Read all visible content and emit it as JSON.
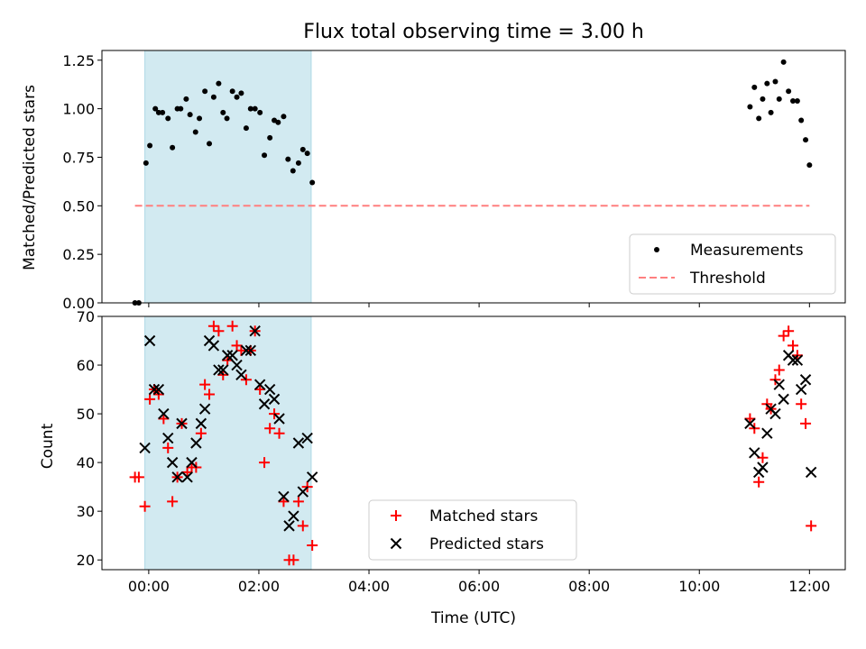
{
  "title": "Flux total observing time = 3.00 h",
  "chart_data": [
    {
      "type": "scatter",
      "ylabel": "Matched/Predicted stars",
      "ylim": [
        0,
        1.3
      ],
      "yticks": [
        0,
        0.25,
        0.5,
        0.75,
        1.0,
        1.25
      ],
      "yticklabels": [
        "0.00",
        "0.25",
        "0.50",
        "0.75",
        "1.00",
        "1.25"
      ],
      "xlim_hours": [
        -0.85,
        12.65
      ],
      "highlight_span_hours": [
        -0.07,
        2.95
      ],
      "highlight_color": "#add8e6",
      "legend_position": "lower-right",
      "series": [
        {
          "name": "Measurements",
          "marker": "dot",
          "color": "#000000",
          "points": [
            [
              -0.25,
              0.0
            ],
            [
              -0.18,
              0.0
            ],
            [
              -0.05,
              0.72
            ],
            [
              0.02,
              0.81
            ],
            [
              0.12,
              1.0
            ],
            [
              0.18,
              0.98
            ],
            [
              0.25,
              0.98
            ],
            [
              0.35,
              0.95
            ],
            [
              0.43,
              0.8
            ],
            [
              0.52,
              1.0
            ],
            [
              0.58,
              1.0
            ],
            [
              0.68,
              1.05
            ],
            [
              0.75,
              0.97
            ],
            [
              0.85,
              0.88
            ],
            [
              0.92,
              0.95
            ],
            [
              1.02,
              1.09
            ],
            [
              1.1,
              0.82
            ],
            [
              1.18,
              1.06
            ],
            [
              1.27,
              1.13
            ],
            [
              1.35,
              0.98
            ],
            [
              1.42,
              0.95
            ],
            [
              1.52,
              1.09
            ],
            [
              1.6,
              1.06
            ],
            [
              1.68,
              1.08
            ],
            [
              1.77,
              0.9
            ],
            [
              1.85,
              1.0
            ],
            [
              1.93,
              1.0
            ],
            [
              2.02,
              0.98
            ],
            [
              2.1,
              0.76
            ],
            [
              2.2,
              0.85
            ],
            [
              2.28,
              0.94
            ],
            [
              2.35,
              0.93
            ],
            [
              2.45,
              0.96
            ],
            [
              2.53,
              0.74
            ],
            [
              2.62,
              0.68
            ],
            [
              2.72,
              0.72
            ],
            [
              2.8,
              0.79
            ],
            [
              2.88,
              0.77
            ],
            [
              2.97,
              0.62
            ],
            [
              10.92,
              1.01
            ],
            [
              11.0,
              1.11
            ],
            [
              11.08,
              0.95
            ],
            [
              11.15,
              1.05
            ],
            [
              11.23,
              1.13
            ],
            [
              11.3,
              0.98
            ],
            [
              11.38,
              1.14
            ],
            [
              11.45,
              1.05
            ],
            [
              11.53,
              1.24
            ],
            [
              11.62,
              1.09
            ],
            [
              11.7,
              1.04
            ],
            [
              11.78,
              1.04
            ],
            [
              11.85,
              0.94
            ],
            [
              11.93,
              0.84
            ],
            [
              12.0,
              0.71
            ]
          ]
        },
        {
          "name": "Threshold",
          "marker": "dashed-line",
          "color": "#ff7f7f",
          "x": [
            -0.25,
            12.0
          ],
          "y": [
            0.5,
            0.5
          ]
        }
      ]
    },
    {
      "type": "scatter",
      "xlabel": "Time (UTC)",
      "ylabel": "Count",
      "ylim": [
        18,
        70
      ],
      "yticks": [
        20,
        30,
        40,
        50,
        60,
        70
      ],
      "yticklabels": [
        "20",
        "30",
        "40",
        "50",
        "60",
        "70"
      ],
      "xlim_hours": [
        -0.85,
        12.65
      ],
      "xticks_hours": [
        0,
        2,
        4,
        6,
        8,
        10,
        12
      ],
      "xticklabels": [
        "00:00",
        "02:00",
        "04:00",
        "06:00",
        "08:00",
        "10:00",
        "12:00"
      ],
      "highlight_span_hours": [
        -0.07,
        2.95
      ],
      "highlight_color": "#add8e6",
      "legend_position": "lower-center",
      "series": [
        {
          "name": "Matched stars",
          "marker": "plus",
          "color": "#ff0000",
          "points": [
            [
              -0.25,
              37
            ],
            [
              -0.18,
              37
            ],
            [
              -0.07,
              31
            ],
            [
              0.02,
              53
            ],
            [
              0.1,
              55
            ],
            [
              0.18,
              54
            ],
            [
              0.27,
              49
            ],
            [
              0.35,
              43
            ],
            [
              0.43,
              32
            ],
            [
              0.52,
              37
            ],
            [
              0.6,
              48
            ],
            [
              0.7,
              38
            ],
            [
              0.78,
              39
            ],
            [
              0.86,
              39
            ],
            [
              0.95,
              46
            ],
            [
              1.02,
              56
            ],
            [
              1.1,
              54
            ],
            [
              1.18,
              68
            ],
            [
              1.27,
              67
            ],
            [
              1.35,
              58
            ],
            [
              1.43,
              61
            ],
            [
              1.52,
              68
            ],
            [
              1.6,
              64
            ],
            [
              1.68,
              63
            ],
            [
              1.77,
              57
            ],
            [
              1.85,
              63
            ],
            [
              1.93,
              67
            ],
            [
              2.02,
              55
            ],
            [
              2.1,
              40
            ],
            [
              2.2,
              47
            ],
            [
              2.28,
              50
            ],
            [
              2.37,
              46
            ],
            [
              2.45,
              32
            ],
            [
              2.55,
              20
            ],
            [
              2.63,
              20
            ],
            [
              2.72,
              32
            ],
            [
              2.8,
              27
            ],
            [
              2.88,
              35
            ],
            [
              2.97,
              23
            ],
            [
              10.92,
              49
            ],
            [
              11.0,
              47
            ],
            [
              11.08,
              36
            ],
            [
              11.15,
              41
            ],
            [
              11.23,
              52
            ],
            [
              11.3,
              51
            ],
            [
              11.38,
              57
            ],
            [
              11.45,
              59
            ],
            [
              11.53,
              66
            ],
            [
              11.62,
              67
            ],
            [
              11.7,
              64
            ],
            [
              11.78,
              62
            ],
            [
              11.85,
              52
            ],
            [
              11.93,
              48
            ],
            [
              12.03,
              27
            ]
          ]
        },
        {
          "name": "Predicted stars",
          "marker": "x",
          "color": "#000000",
          "points": [
            [
              -0.07,
              43
            ],
            [
              0.02,
              65
            ],
            [
              0.1,
              55
            ],
            [
              0.18,
              55
            ],
            [
              0.27,
              50
            ],
            [
              0.35,
              45
            ],
            [
              0.43,
              40
            ],
            [
              0.52,
              37
            ],
            [
              0.6,
              48
            ],
            [
              0.7,
              37
            ],
            [
              0.78,
              40
            ],
            [
              0.86,
              44
            ],
            [
              0.95,
              48
            ],
            [
              1.02,
              51
            ],
            [
              1.1,
              65
            ],
            [
              1.18,
              64
            ],
            [
              1.27,
              59
            ],
            [
              1.35,
              59
            ],
            [
              1.43,
              62
            ],
            [
              1.52,
              62
            ],
            [
              1.6,
              60
            ],
            [
              1.68,
              58
            ],
            [
              1.77,
              63
            ],
            [
              1.85,
              63
            ],
            [
              1.93,
              67
            ],
            [
              2.02,
              56
            ],
            [
              2.1,
              52
            ],
            [
              2.2,
              55
            ],
            [
              2.28,
              53
            ],
            [
              2.37,
              49
            ],
            [
              2.45,
              33
            ],
            [
              2.55,
              27
            ],
            [
              2.63,
              29
            ],
            [
              2.72,
              44
            ],
            [
              2.8,
              34
            ],
            [
              2.88,
              45
            ],
            [
              2.97,
              37
            ],
            [
              10.92,
              48
            ],
            [
              11.0,
              42
            ],
            [
              11.08,
              38
            ],
            [
              11.15,
              39
            ],
            [
              11.23,
              46
            ],
            [
              11.3,
              51
            ],
            [
              11.38,
              50
            ],
            [
              11.45,
              56
            ],
            [
              11.53,
              53
            ],
            [
              11.62,
              62
            ],
            [
              11.7,
              61
            ],
            [
              11.78,
              61
            ],
            [
              11.85,
              55
            ],
            [
              11.93,
              57
            ],
            [
              12.03,
              38
            ]
          ]
        }
      ]
    }
  ]
}
